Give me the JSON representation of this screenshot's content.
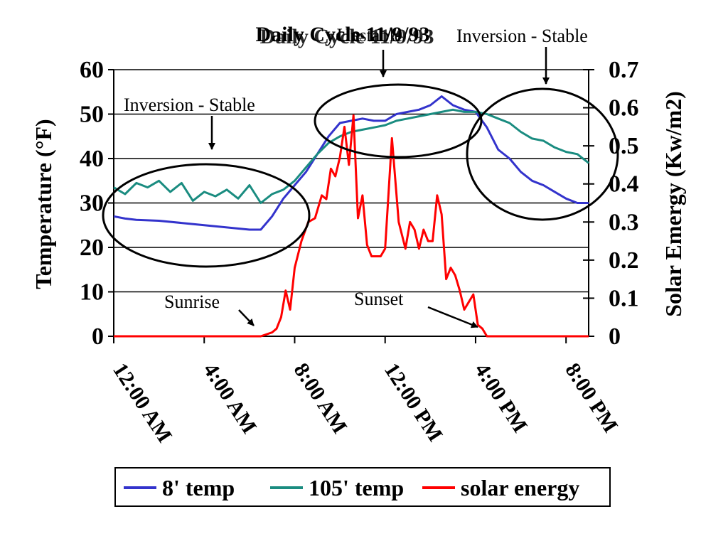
{
  "chart_data": {
    "type": "line",
    "title": "Daily Cycle 11/9/93",
    "ylabel": "Temperature (°F)",
    "y2label": "Solar Emergy (Kw/m2)",
    "ylim": [
      0,
      60
    ],
    "y2lim": [
      0,
      0.7
    ],
    "y_ticks": [
      "0",
      "10",
      "20",
      "30",
      "40",
      "50",
      "60"
    ],
    "y2_ticks": [
      "0",
      "0.1",
      "0.2",
      "0.3",
      "0.4",
      "0.5",
      "0.6",
      "0.7"
    ],
    "x_ticks": [
      "12:00 AM",
      "4:00 AM",
      "8:00 AM",
      "12:00 PM",
      "4:00 PM",
      "8:00 PM"
    ],
    "x_unit": "hour of day",
    "xlim": [
      0,
      21
    ],
    "grid": "horizontal",
    "legend_position": "bottom",
    "series": [
      {
        "name": "8' temp",
        "axis": "left",
        "color": "#3333cc",
        "x": [
          0,
          0.5,
          1,
          2,
          3,
          4,
          5,
          6,
          6.5,
          7,
          7.5,
          8,
          8.5,
          9,
          9.5,
          10,
          10.5,
          11,
          11.5,
          12,
          12.5,
          13,
          13.5,
          14,
          14.5,
          15,
          15.5,
          16,
          16.5,
          17,
          17.5,
          18,
          18.5,
          19,
          19.5,
          20,
          20.5,
          21
        ],
        "values": [
          27,
          26.5,
          26.2,
          26,
          25.5,
          25,
          24.5,
          24,
          24,
          27,
          31,
          34,
          37,
          41,
          45,
          48,
          48.5,
          49,
          48.5,
          48.5,
          50,
          50.5,
          51,
          52,
          54,
          52,
          51,
          50.5,
          47,
          42,
          40,
          37,
          35,
          34,
          32.5,
          31,
          30,
          30
        ]
      },
      {
        "name": "105' temp",
        "axis": "left",
        "color": "#1a8c80",
        "x": [
          0,
          0.5,
          1,
          1.5,
          2,
          2.5,
          3,
          3.5,
          4,
          4.5,
          5,
          5.5,
          6,
          6.5,
          7,
          7.5,
          8,
          8.5,
          9,
          9.5,
          10,
          10.5,
          11,
          11.5,
          12,
          12.5,
          13,
          13.5,
          14,
          14.5,
          15,
          15.5,
          16,
          16.5,
          17,
          17.5,
          18,
          18.5,
          19,
          19.5,
          20,
          20.5,
          21
        ],
        "values": [
          33.5,
          32,
          34.5,
          33.5,
          35,
          32.5,
          34.5,
          30.5,
          32.5,
          31.5,
          33,
          31,
          34,
          30,
          32,
          33,
          35,
          38,
          41,
          43.5,
          45,
          46,
          46.5,
          47,
          47.5,
          48.5,
          49,
          49.5,
          50,
          50.5,
          51,
          50.5,
          50.5,
          50,
          49,
          48,
          46,
          44.5,
          44,
          42.5,
          41.5,
          41,
          39
        ]
      },
      {
        "name": "solar energy",
        "axis": "right",
        "color": "#ff0000",
        "x": [
          0,
          1,
          2,
          3,
          4,
          5,
          6,
          6.5,
          7,
          7.2,
          7.4,
          7.6,
          7.8,
          8,
          8.3,
          8.6,
          8.9,
          9.2,
          9.4,
          9.6,
          9.8,
          10,
          10.2,
          10.4,
          10.6,
          10.8,
          11,
          11.2,
          11.4,
          11.6,
          11.8,
          12,
          12.3,
          12.6,
          12.9,
          13.1,
          13.3,
          13.5,
          13.7,
          13.9,
          14.1,
          14.3,
          14.5,
          14.7,
          14.9,
          15.1,
          15.3,
          15.5,
          15.7,
          15.9,
          16.1,
          16.3,
          16.5,
          16.8,
          17,
          18,
          19,
          20,
          21
        ],
        "values": [
          0,
          0,
          0,
          0,
          0,
          0,
          0,
          0,
          0.01,
          0.02,
          0.05,
          0.12,
          0.07,
          0.18,
          0.25,
          0.3,
          0.31,
          0.37,
          0.36,
          0.44,
          0.42,
          0.47,
          0.55,
          0.45,
          0.58,
          0.31,
          0.37,
          0.24,
          0.21,
          0.21,
          0.21,
          0.23,
          0.52,
          0.3,
          0.23,
          0.3,
          0.28,
          0.23,
          0.28,
          0.25,
          0.25,
          0.37,
          0.32,
          0.15,
          0.18,
          0.16,
          0.12,
          0.07,
          0.09,
          0.11,
          0.03,
          0.02,
          0,
          0,
          0,
          0,
          0,
          0,
          0
        ]
      }
    ],
    "annotations": {
      "inversion_left": "Inversion - Stable",
      "inversion_right": "Inversion - Stable",
      "unstable": "Unstable",
      "sunrise": "Sunrise",
      "sunset": "Sunset"
    }
  }
}
